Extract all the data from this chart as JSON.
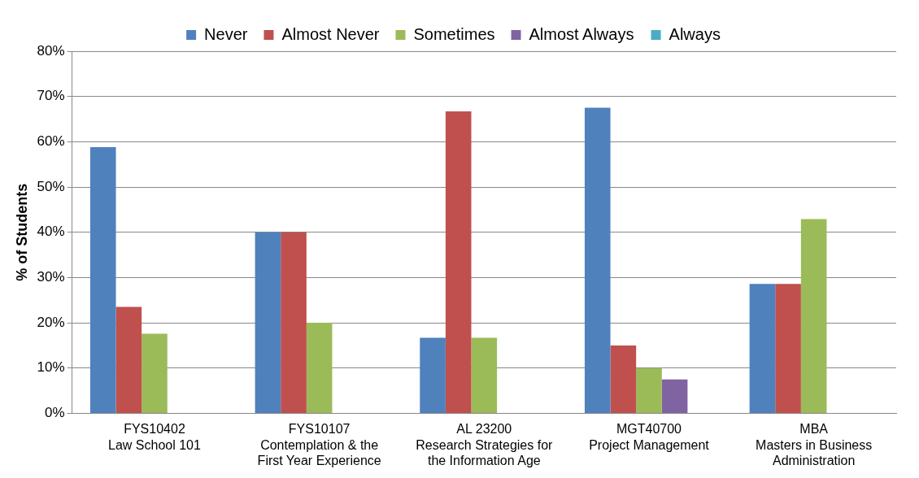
{
  "chart_data": {
    "type": "bar",
    "ylabel": "% of Students",
    "categories": [
      "FYS10402\nLaw School 101",
      "FYS10107\nContemplation & the\nFirst Year Experience",
      "AL 23200\nResearch Strategies for\nthe Information Age",
      "MGT40700\nProject Management",
      "MBA\nMasters in Business\nAdministration"
    ],
    "series": [
      {
        "name": "Never",
        "color": "#4f81bd",
        "values": [
          58.8,
          40,
          16.7,
          67.5,
          28.6
        ]
      },
      {
        "name": "Almost Never",
        "color": "#c0504d",
        "values": [
          23.5,
          40,
          66.7,
          15,
          28.6
        ]
      },
      {
        "name": "Sometimes",
        "color": "#9bbb59",
        "values": [
          17.6,
          20,
          16.7,
          10,
          42.9
        ]
      },
      {
        "name": "Almost Always",
        "color": "#8064a2",
        "values": [
          0,
          0,
          0,
          7.5,
          0
        ]
      },
      {
        "name": "Always",
        "color": "#4bacc6",
        "values": [
          0,
          0,
          0,
          0,
          0
        ]
      }
    ],
    "ylim": [
      0,
      80
    ],
    "yticks": [
      {
        "value": 0,
        "label": "0%"
      },
      {
        "value": 10,
        "label": "10%"
      },
      {
        "value": 20,
        "label": "20%"
      },
      {
        "value": 30,
        "label": "30%"
      },
      {
        "value": 40,
        "label": "40%"
      },
      {
        "value": 50,
        "label": "50%"
      },
      {
        "value": 60,
        "label": "60%"
      },
      {
        "value": 70,
        "label": "70%"
      },
      {
        "value": 80,
        "label": "80%"
      }
    ],
    "grid": "y",
    "legend": "top"
  }
}
